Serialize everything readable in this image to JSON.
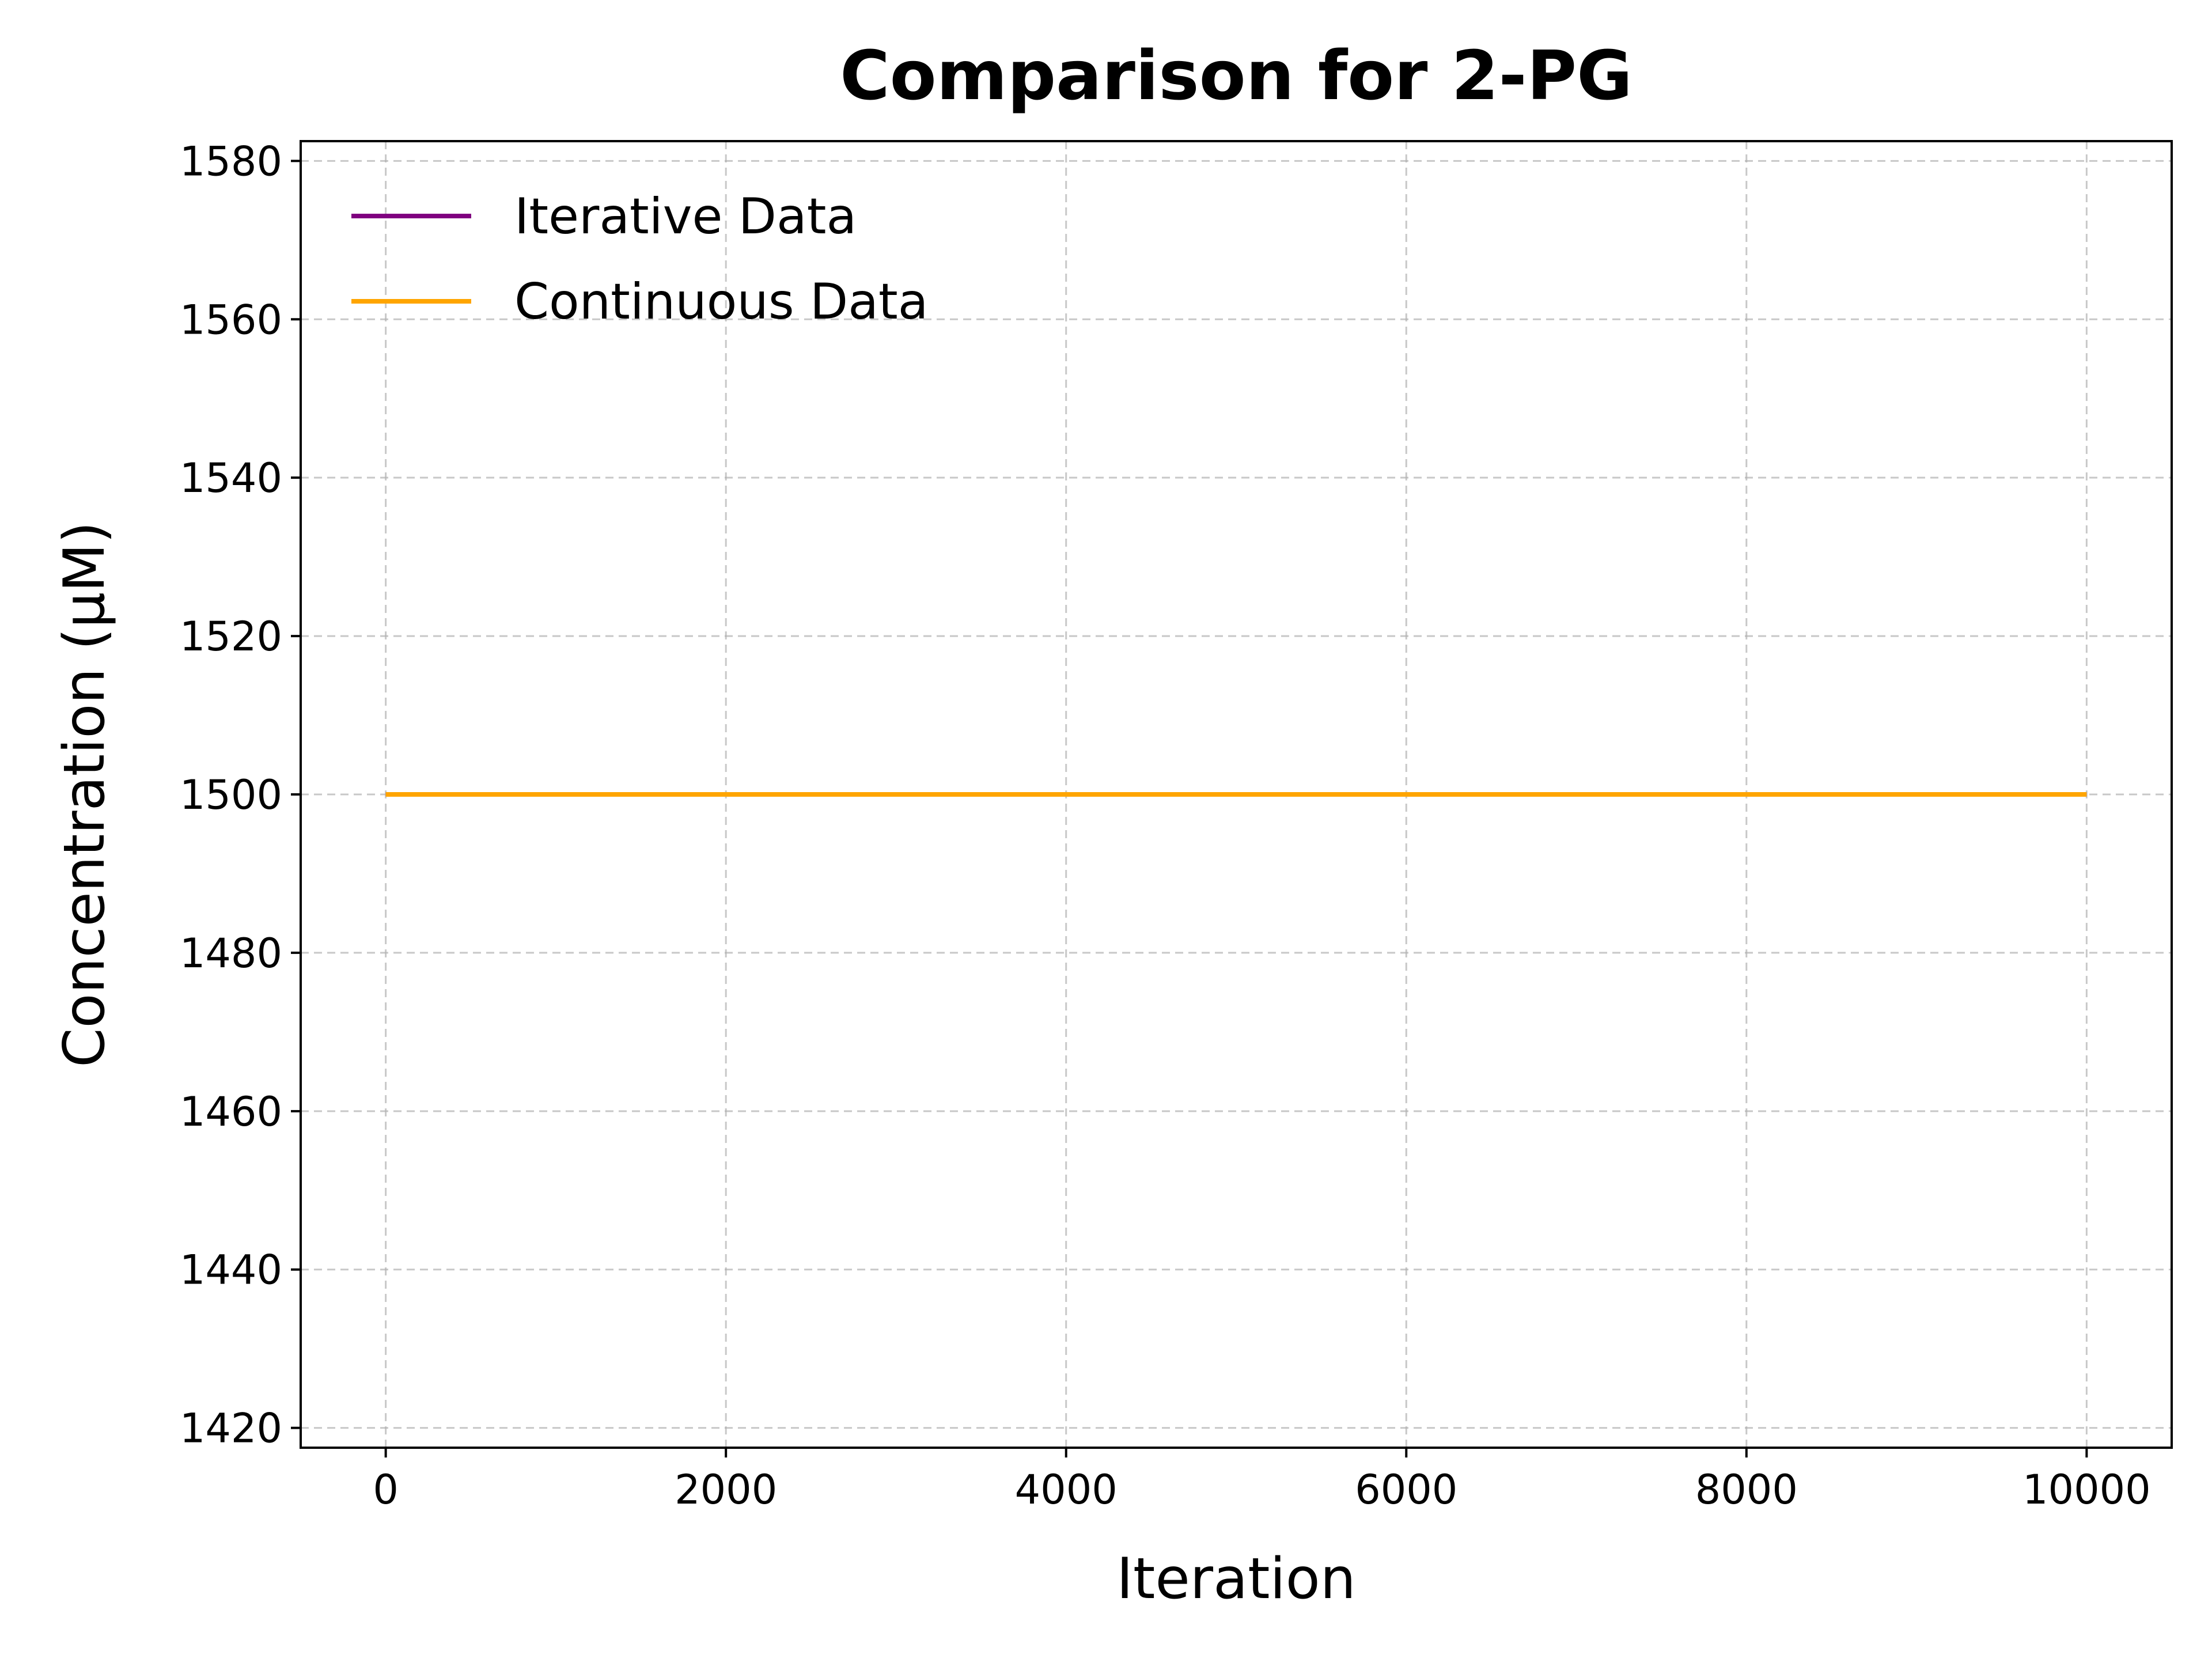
{
  "chart_data": {
    "type": "line",
    "title": "Comparison for 2-PG",
    "xlabel": "Iteration",
    "ylabel": "Concentration (μM)",
    "xlim": [
      -500,
      10500
    ],
    "ylim": [
      1417.5,
      1582.5
    ],
    "x_ticks": [
      0,
      2000,
      4000,
      6000,
      8000,
      10000
    ],
    "y_ticks": [
      1420,
      1440,
      1460,
      1480,
      1500,
      1520,
      1540,
      1560,
      1580
    ],
    "grid": true,
    "legend_position": "top-left",
    "series": [
      {
        "name": "Iterative Data",
        "color": "#800080",
        "x": [
          0,
          10000
        ],
        "y": [
          1500,
          1500
        ]
      },
      {
        "name": "Continuous Data",
        "color": "#FFA500",
        "x": [
          0,
          10000
        ],
        "y": [
          1500,
          1500
        ]
      }
    ]
  }
}
